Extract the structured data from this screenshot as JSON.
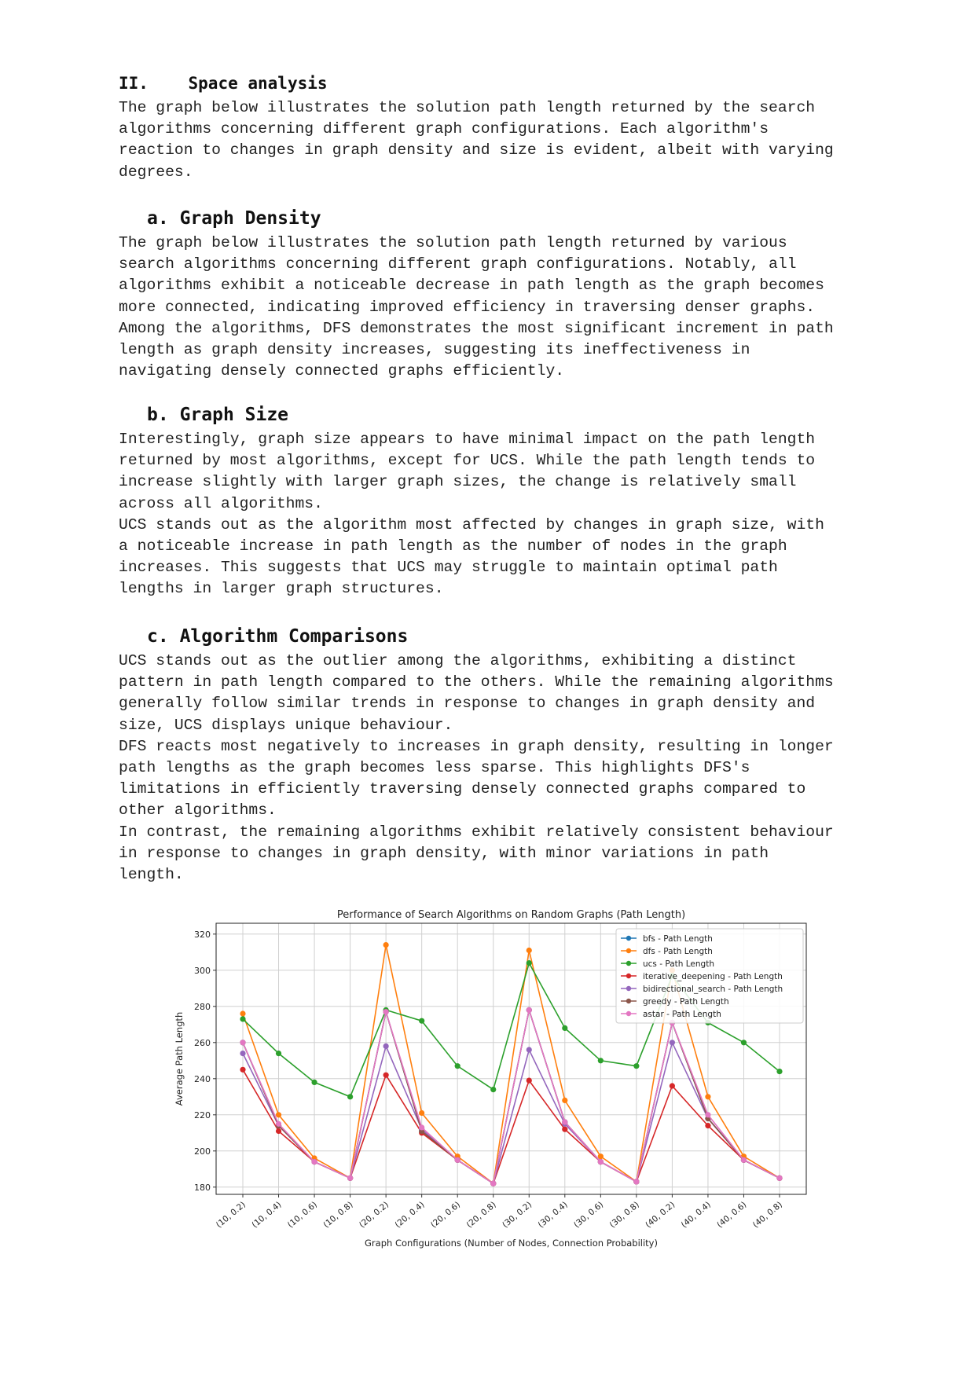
{
  "section": {
    "number": "II.",
    "title": "Space analysis",
    "intro": "The graph below illustrates the solution path length returned by the search\nalgorithms concerning different graph configurations. Each algorithm's\nreaction to changes in graph density and size is evident, albeit with varying\ndegrees."
  },
  "subsections": [
    {
      "label": "a.",
      "title": "Graph Density",
      "text": "The graph below illustrates the solution path length returned by various\nsearch algorithms concerning different graph configurations. Notably, all\nalgorithms exhibit a noticeable decrease in path length as the graph becomes\nmore connected, indicating improved efficiency in traversing denser graphs.\nAmong the algorithms, DFS demonstrates the most significant increment in path\nlength as graph density increases, suggesting its ineffectiveness in\nnavigating densely connected graphs efficiently."
    },
    {
      "label": "b.",
      "title": "Graph Size",
      "text": "Interestingly, graph size appears to have minimal impact on the path length\nreturned by most algorithms, except for UCS. While the path length tends to\nincrease slightly with larger graph sizes, the change is relatively small\nacross all algorithms.\nUCS stands out as the algorithm most affected by changes in graph size, with\na noticeable increase in path length as the number of nodes in the graph\nincreases. This suggests that UCS may struggle to maintain optimal path\nlengths in larger graph structures."
    },
    {
      "label": "c.",
      "title": "Algorithm Comparisons",
      "text": "UCS stands out as the outlier among the algorithms, exhibiting a distinct\npattern in path length compared to the others. While the remaining algorithms\ngenerally follow similar trends in response to changes in graph density and\nsize, UCS displays unique behaviour.\nDFS reacts most negatively to increases in graph density, resulting in longer\npath lengths as the graph becomes less sparse. This highlights DFS's\nlimitations in efficiently traversing densely connected graphs compared to\nother algorithms.\nIn contrast, the remaining algorithms exhibit relatively consistent behaviour\nin response to changes in graph density, with minor variations in path\nlength."
    }
  ],
  "chart_data": {
    "type": "line",
    "title": "Performance of Search Algorithms on Random Graphs (Path Length)",
    "xlabel": "Graph Configurations (Number of Nodes, Connection Probability)",
    "ylabel": "Average Path Length",
    "ylim": [
      176,
      326
    ],
    "yticks": [
      180,
      200,
      220,
      240,
      260,
      280,
      300,
      320
    ],
    "grid": true,
    "legend_position": "top-right",
    "categories": [
      "(10, 0.2)",
      "(10, 0.4)",
      "(10, 0.6)",
      "(10, 0.8)",
      "(20, 0.2)",
      "(20, 0.4)",
      "(20, 0.6)",
      "(20, 0.8)",
      "(30, 0.2)",
      "(30, 0.4)",
      "(30, 0.6)",
      "(30, 0.8)",
      "(40, 0.2)",
      "(40, 0.4)",
      "(40, 0.6)",
      "(40, 0.8)"
    ],
    "series": [
      {
        "name": "bfs - Path Length",
        "color": "#1f77b4",
        "values": [
          260,
          214,
          194,
          185,
          277,
          211,
          195,
          182,
          278,
          216,
          194,
          183,
          271,
          218,
          195,
          185
        ]
      },
      {
        "name": "dfs - Path Length",
        "color": "#ff7f0e",
        "values": [
          276,
          220,
          196,
          185,
          314,
          221,
          197,
          182,
          311,
          228,
          197,
          183,
          300,
          230,
          197,
          185
        ]
      },
      {
        "name": "ucs - Path Length",
        "color": "#2ca02c",
        "values": [
          273,
          254,
          238,
          230,
          278,
          272,
          247,
          234,
          304,
          268,
          250,
          247,
          297,
          271,
          260,
          244
        ]
      },
      {
        "name": "iterative_deepening - Path Length",
        "color": "#d62728",
        "values": [
          245,
          211,
          194,
          185,
          242,
          210,
          195,
          182,
          239,
          212,
          194,
          183,
          236,
          214,
          195,
          185
        ]
      },
      {
        "name": "bidirectional_search - Path Length",
        "color": "#9467bd",
        "values": [
          254,
          214,
          194,
          185,
          258,
          212,
          195,
          182,
          256,
          215,
          194,
          183,
          260,
          218,
          195,
          185
        ]
      },
      {
        "name": "greedy - Path Length",
        "color": "#8c564b",
        "values": [
          260,
          214,
          194,
          185,
          277,
          211,
          195,
          182,
          278,
          216,
          194,
          183,
          271,
          218,
          195,
          185
        ]
      },
      {
        "name": "astar - Path Length",
        "color": "#e377c2",
        "values": [
          260,
          215,
          194,
          185,
          277,
          213,
          195,
          182,
          278,
          216,
          194,
          183,
          271,
          220,
          195,
          185
        ]
      }
    ]
  }
}
